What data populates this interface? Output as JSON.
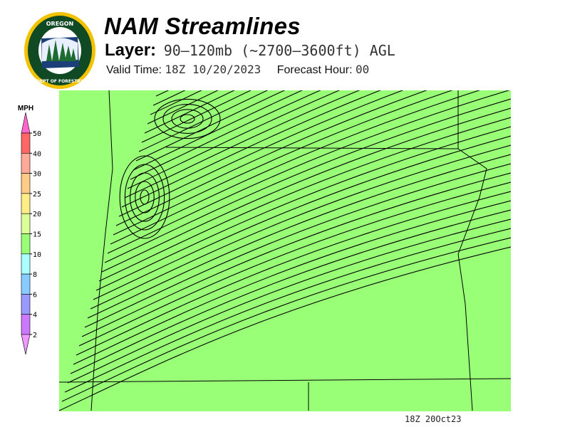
{
  "logo": {
    "text_top": "OREGON",
    "text_bottom": "DEPARTMENT OF FORESTRY",
    "colors": {
      "ring": "#f2c200",
      "green": "#0f4a24",
      "blue": "#1c3f7a"
    }
  },
  "header": {
    "title": "NAM Streamlines",
    "layer_label": "Layer:",
    "layer_value": "90–120mb (~2700–3600ft) AGL",
    "valid_label": "Valid Time:",
    "valid_value": "18Z 10/20/2023",
    "forecast_label": "Forecast Hour:",
    "forecast_value": "00"
  },
  "legend": {
    "unit": "MPH",
    "levels": [
      "50",
      "40",
      "30",
      "25",
      "20",
      "15",
      "10",
      "8",
      "6",
      "4",
      "2"
    ],
    "colors": [
      "#ff66cc",
      "#ff6666",
      "#ffaa99",
      "#ffcc88",
      "#ffee88",
      "#ddff99",
      "#99ff77",
      "#aaffff",
      "#88ccff",
      "#9999ff",
      "#cc77ff",
      "#ee99ff"
    ]
  },
  "map": {
    "timestamp": "18Z 20Oct23"
  }
}
